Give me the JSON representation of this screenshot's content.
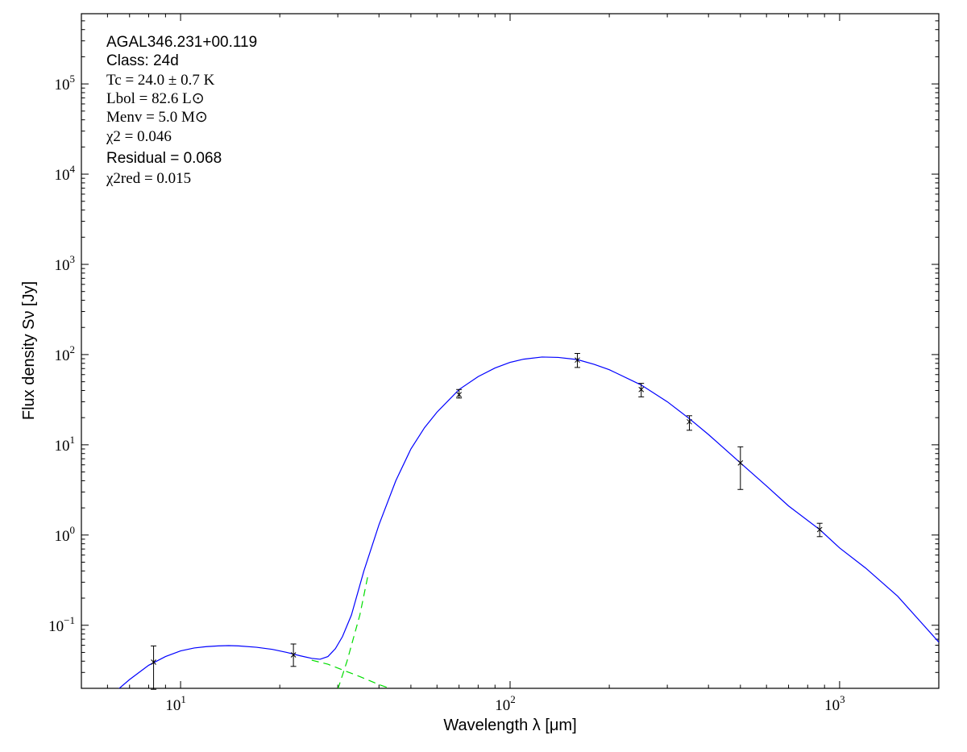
{
  "chart_data": {
    "type": "line",
    "xlabel": "Wavelength λ [μm]",
    "ylabel": "Flux density Sν [Jy]",
    "x_scale": "log",
    "y_scale": "log",
    "xlim": [
      5,
      2000
    ],
    "ylim": [
      0.02,
      600000
    ],
    "grid": false,
    "x_ticks": [
      {
        "value": 10,
        "base": "10",
        "exp": "1"
      },
      {
        "value": 100,
        "base": "10",
        "exp": "2"
      },
      {
        "value": 1000,
        "base": "10",
        "exp": "3"
      }
    ],
    "y_ticks": [
      {
        "value": 0.1,
        "base": "10",
        "exp": "−1"
      },
      {
        "value": 1,
        "base": "10",
        "exp": "0"
      },
      {
        "value": 10,
        "base": "10",
        "exp": "1"
      },
      {
        "value": 100,
        "base": "10",
        "exp": "2"
      },
      {
        "value": 1000,
        "base": "10",
        "exp": "3"
      },
      {
        "value": 10000,
        "base": "10",
        "exp": "4"
      },
      {
        "value": 100000,
        "base": "10",
        "exp": "5"
      }
    ],
    "annotations": [
      {
        "text": "AGAL346.231+00.119",
        "style": "sans"
      },
      {
        "text": "Class: 24d",
        "style": "sans"
      },
      {
        "text": "Tc = 24.0 ± 0.7 K",
        "style": "serif"
      },
      {
        "text": "Lbol = 82.6 L⊙",
        "style": "serif"
      },
      {
        "text": "Menv = 5.0 M⊙",
        "style": "serif"
      },
      {
        "text": "χ2 = 0.046",
        "style": "serif"
      },
      {
        "text": "Residual = 0.068",
        "style": "sans"
      },
      {
        "text": "χ2red = 0.015",
        "style": "serif"
      }
    ],
    "points": [
      {
        "x": 8.28,
        "y": 0.039,
        "yerr_low": 0.0195,
        "yerr_high": 0.059
      },
      {
        "x": 22.0,
        "y": 0.047,
        "yerr_low": 0.035,
        "yerr_high": 0.062
      },
      {
        "x": 70,
        "y": 36,
        "yerr_low": 33,
        "yerr_high": 41
      },
      {
        "x": 160,
        "y": 87,
        "yerr_low": 72,
        "yerr_high": 103
      },
      {
        "x": 250,
        "y": 41,
        "yerr_low": 34,
        "yerr_high": 48
      },
      {
        "x": 350,
        "y": 18,
        "yerr_low": 14.5,
        "yerr_high": 21
      },
      {
        "x": 500,
        "y": 6.3,
        "yerr_low": 3.2,
        "yerr_high": 9.5
      },
      {
        "x": 870,
        "y": 1.15,
        "yerr_low": 0.96,
        "yerr_high": 1.35
      }
    ],
    "series": [
      {
        "style": "solid",
        "color": "#0000ff",
        "x": [
          6.3,
          7,
          8,
          9,
          10,
          11,
          12,
          13,
          14,
          15,
          17,
          19,
          21,
          23,
          25,
          26.5,
          28,
          29.5,
          31,
          33,
          36,
          40,
          45,
          50,
          55,
          60,
          70,
          80,
          90,
          100,
          110,
          125,
          140,
          160,
          180,
          200,
          250,
          300,
          350,
          400,
          500,
          600,
          700,
          870,
          1000,
          1200,
          1500,
          2000
        ],
        "y": [
          0.018,
          0.025,
          0.036,
          0.045,
          0.052,
          0.056,
          0.058,
          0.059,
          0.0595,
          0.059,
          0.057,
          0.054,
          0.05,
          0.046,
          0.043,
          0.042,
          0.045,
          0.055,
          0.075,
          0.13,
          0.4,
          1.3,
          4.0,
          9.0,
          15.5,
          23,
          41,
          57,
          71,
          82,
          89,
          94,
          93,
          88,
          78,
          68,
          46,
          30,
          19.5,
          13,
          6.3,
          3.5,
          2.1,
          1.15,
          0.72,
          0.43,
          0.21,
          0.065
        ]
      },
      {
        "style": "dashed",
        "color": "#00dd00",
        "x": [
          25,
          28,
          31,
          35,
          40,
          44
        ],
        "y": [
          0.041,
          0.037,
          0.032,
          0.027,
          0.022,
          0.0195
        ]
      },
      {
        "style": "dashed",
        "color": "#00dd00",
        "x": [
          30,
          31,
          32,
          33,
          35,
          37
        ],
        "y": [
          0.0195,
          0.028,
          0.04,
          0.06,
          0.13,
          0.35
        ]
      }
    ]
  }
}
